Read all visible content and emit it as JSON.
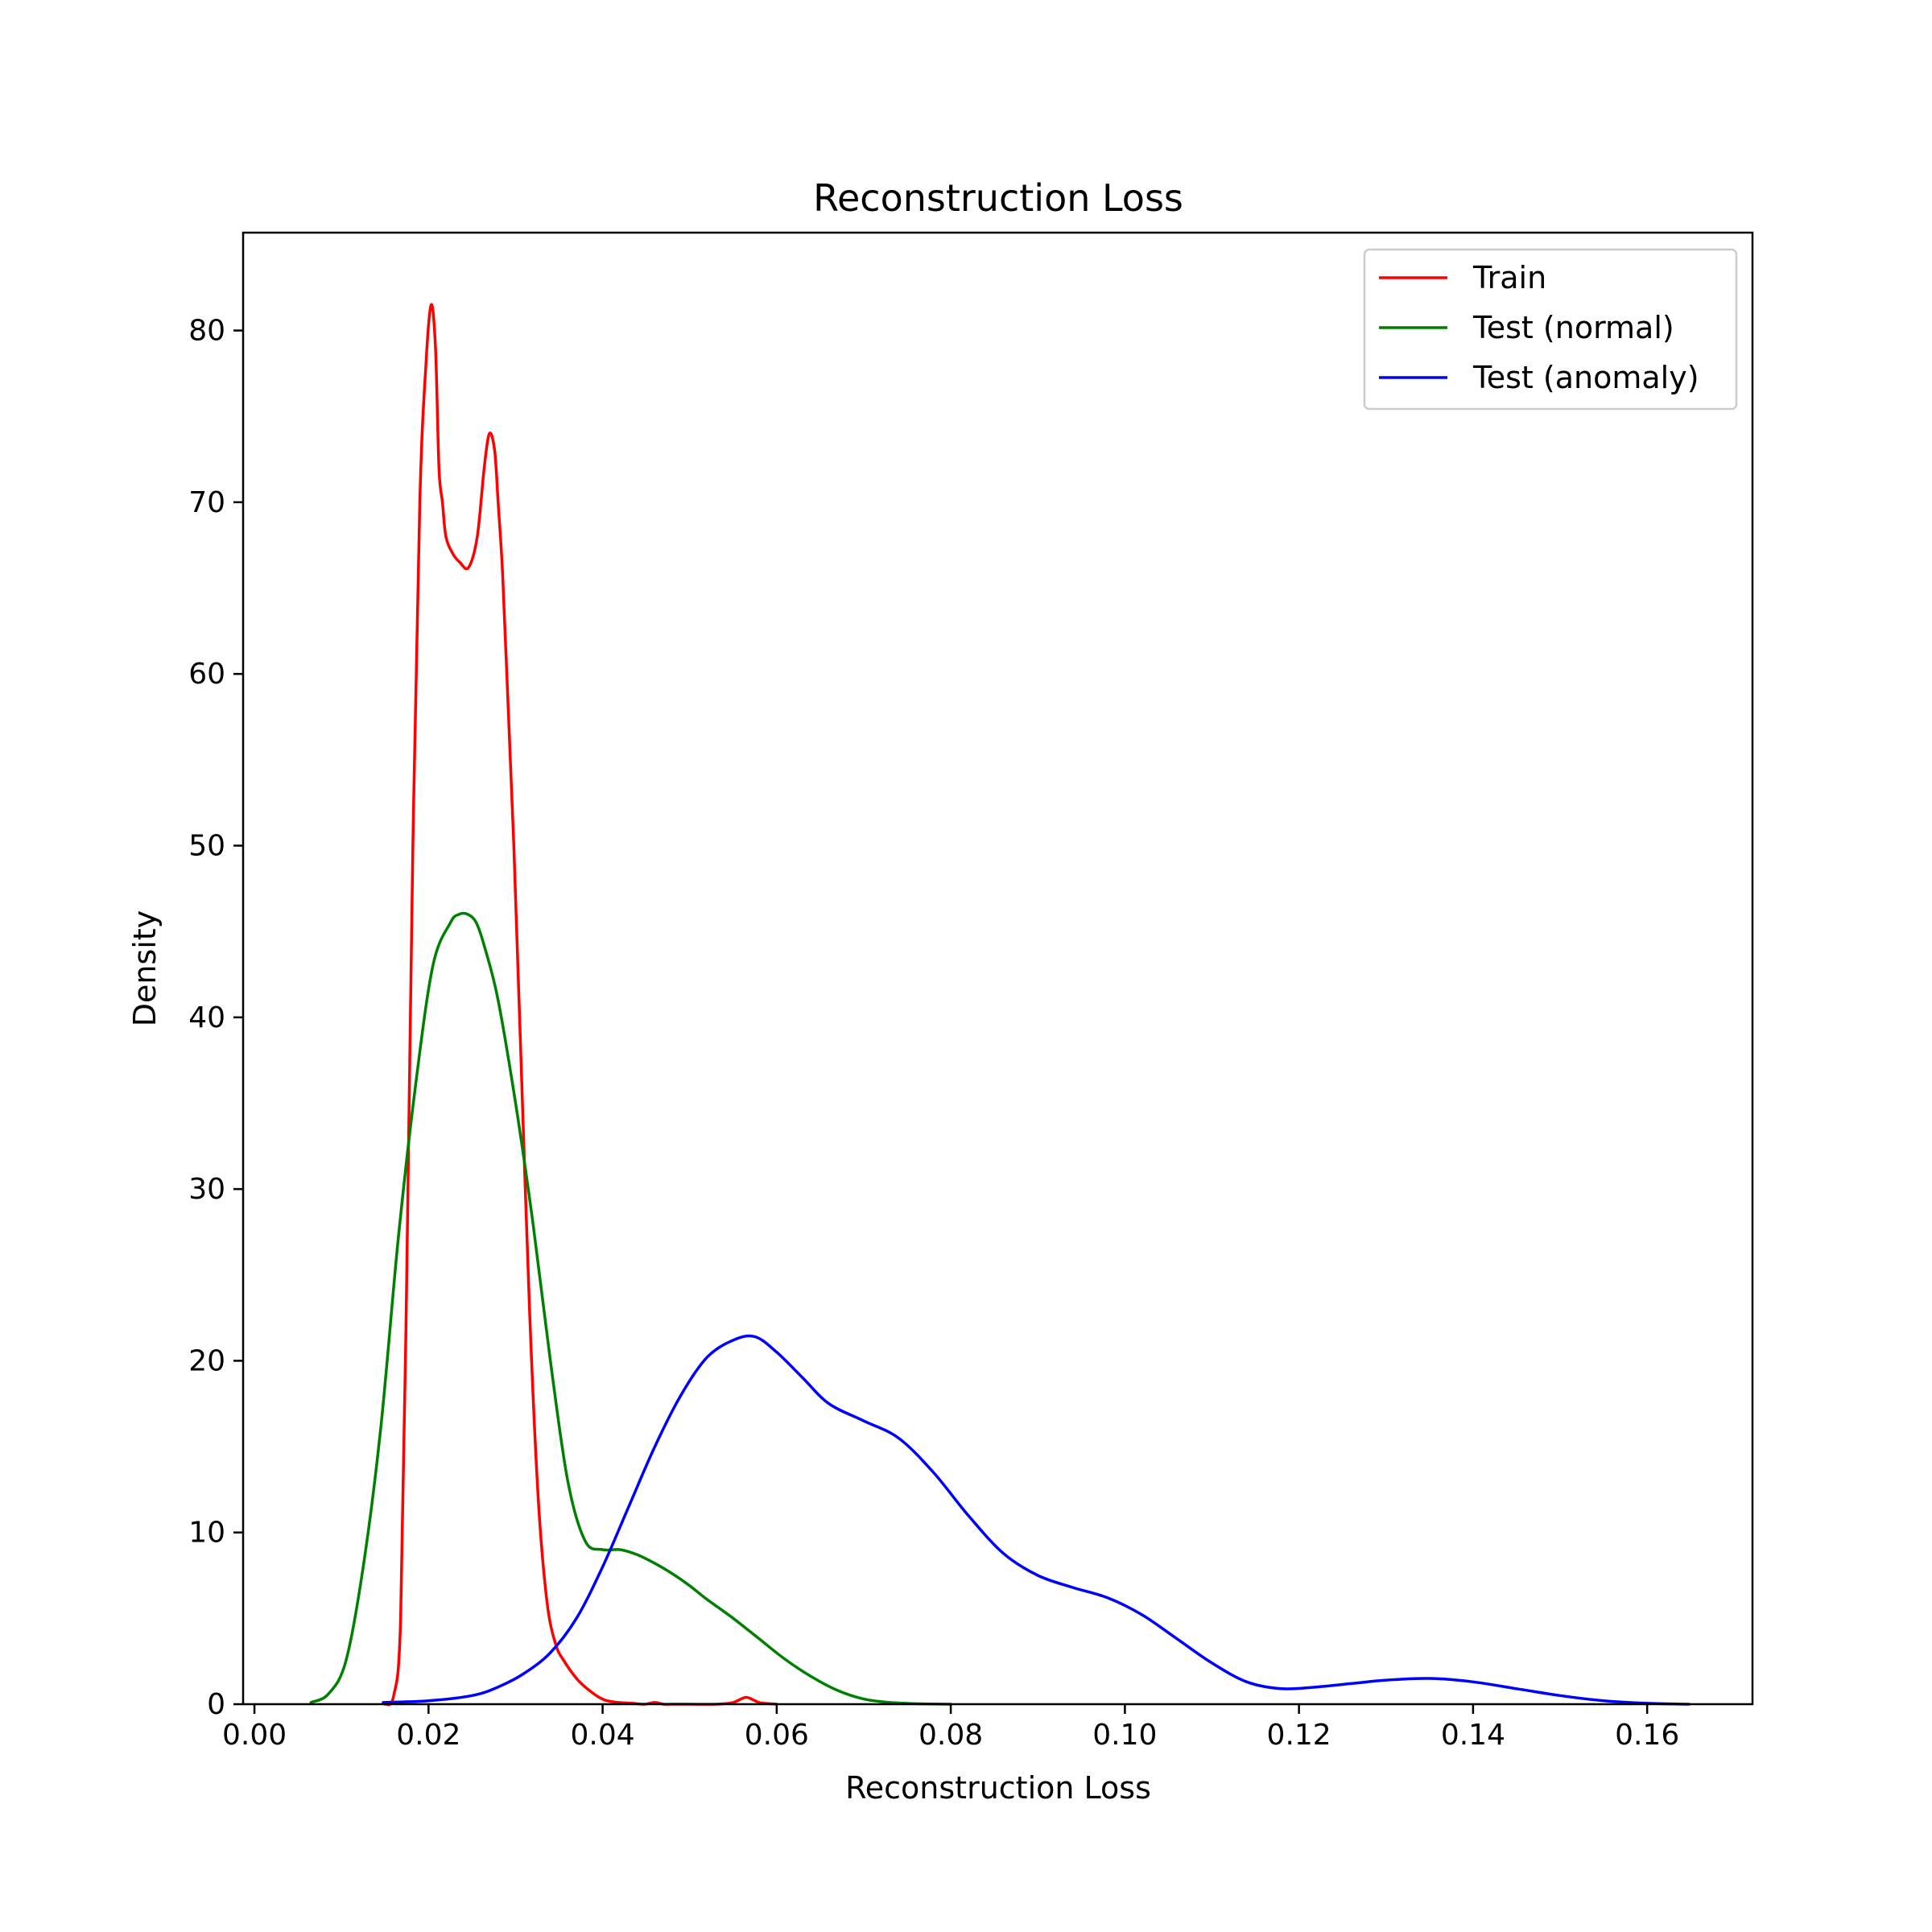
{
  "chart_data": {
    "type": "line",
    "title": "Reconstruction Loss",
    "xlabel": "Reconstruction Loss",
    "ylabel": "Density",
    "xlim": [
      -0.0013,
      0.1721
    ],
    "ylim": [
      0,
      85.7
    ],
    "x_ticks": [
      0.0,
      0.02,
      0.04,
      0.06,
      0.08,
      0.1,
      0.12,
      0.14,
      0.16
    ],
    "x_tick_labels": [
      "0.00",
      "0.02",
      "0.04",
      "0.06",
      "0.08",
      "0.10",
      "0.12",
      "0.14",
      "0.16"
    ],
    "y_ticks": [
      0,
      10,
      20,
      30,
      40,
      50,
      60,
      70,
      80
    ],
    "y_tick_labels": [
      "0",
      "10",
      "20",
      "30",
      "40",
      "50",
      "60",
      "70",
      "80"
    ],
    "grid": false,
    "legend_position": "top-right",
    "series": [
      {
        "name": "Train",
        "color": "#ff0000",
        "x": [
          0.015,
          0.016,
          0.0168,
          0.0175,
          0.0182,
          0.019,
          0.0197,
          0.0203,
          0.0208,
          0.0212,
          0.0216,
          0.022,
          0.0228,
          0.0236,
          0.0246,
          0.0256,
          0.0264,
          0.027,
          0.0276,
          0.028,
          0.0285,
          0.029,
          0.0298,
          0.0306,
          0.0316,
          0.0326,
          0.0336,
          0.0346,
          0.0356,
          0.037,
          0.038,
          0.039,
          0.0396,
          0.0405,
          0.0418,
          0.0435,
          0.0448,
          0.046,
          0.047,
          0.048,
          0.05,
          0.053,
          0.055,
          0.0565,
          0.058,
          0.06
        ],
        "values": [
          0,
          0.5,
          5,
          25,
          50,
          70,
          78,
          81.5,
          79,
          72,
          70,
          68,
          67,
          66.5,
          66.2,
          68,
          72,
          74,
          73,
          70,
          66,
          60,
          50,
          38,
          23,
          12,
          6,
          3.5,
          2.5,
          1.5,
          1,
          0.6,
          0.4,
          0.2,
          0.1,
          0.05,
          0,
          0.1,
          0,
          0,
          0,
          0,
          0.1,
          0.4,
          0.1,
          0
        ]
      },
      {
        "name": "Test (normal)",
        "color": "#008000",
        "x": [
          0.0065,
          0.0085,
          0.0105,
          0.0125,
          0.0145,
          0.0165,
          0.0185,
          0.0205,
          0.0225,
          0.0235,
          0.0245,
          0.0255,
          0.0265,
          0.028,
          0.03,
          0.032,
          0.034,
          0.036,
          0.038,
          0.04,
          0.042,
          0.044,
          0.046,
          0.048,
          0.05,
          0.052,
          0.055,
          0.058,
          0.061,
          0.064,
          0.067,
          0.07,
          0.073,
          0.076,
          0.08
        ],
        "values": [
          0.1,
          0.6,
          2.5,
          8,
          16,
          27,
          36,
          43,
          45.5,
          46,
          46,
          45.5,
          44,
          41,
          35,
          28,
          20,
          13,
          9.5,
          9,
          9,
          8.7,
          8.2,
          7.6,
          6.9,
          6.1,
          5,
          3.8,
          2.6,
          1.6,
          0.8,
          0.3,
          0.1,
          0.03,
          0
        ]
      },
      {
        "name": "Test (anomaly)",
        "color": "#0000ff",
        "x": [
          0.0148,
          0.02,
          0.025,
          0.028,
          0.031,
          0.034,
          0.037,
          0.04,
          0.043,
          0.046,
          0.049,
          0.052,
          0.055,
          0.0575,
          0.06,
          0.063,
          0.066,
          0.07,
          0.074,
          0.078,
          0.082,
          0.086,
          0.09,
          0.094,
          0.098,
          0.102,
          0.106,
          0.11,
          0.114,
          0.118,
          0.122,
          0.126,
          0.13,
          0.135,
          0.14,
          0.145,
          0.15,
          0.155,
          0.16,
          0.1648
        ],
        "values": [
          0.1,
          0.2,
          0.5,
          1,
          1.8,
          3,
          5,
          8,
          11.5,
          15,
          18,
          20.2,
          21.2,
          21.4,
          20.5,
          19,
          17.5,
          16.5,
          15.5,
          13.5,
          11,
          8.8,
          7.5,
          6.8,
          6.2,
          5.2,
          3.8,
          2.4,
          1.3,
          0.9,
          1,
          1.2,
          1.4,
          1.5,
          1.3,
          0.9,
          0.5,
          0.2,
          0.05,
          0
        ]
      }
    ]
  }
}
